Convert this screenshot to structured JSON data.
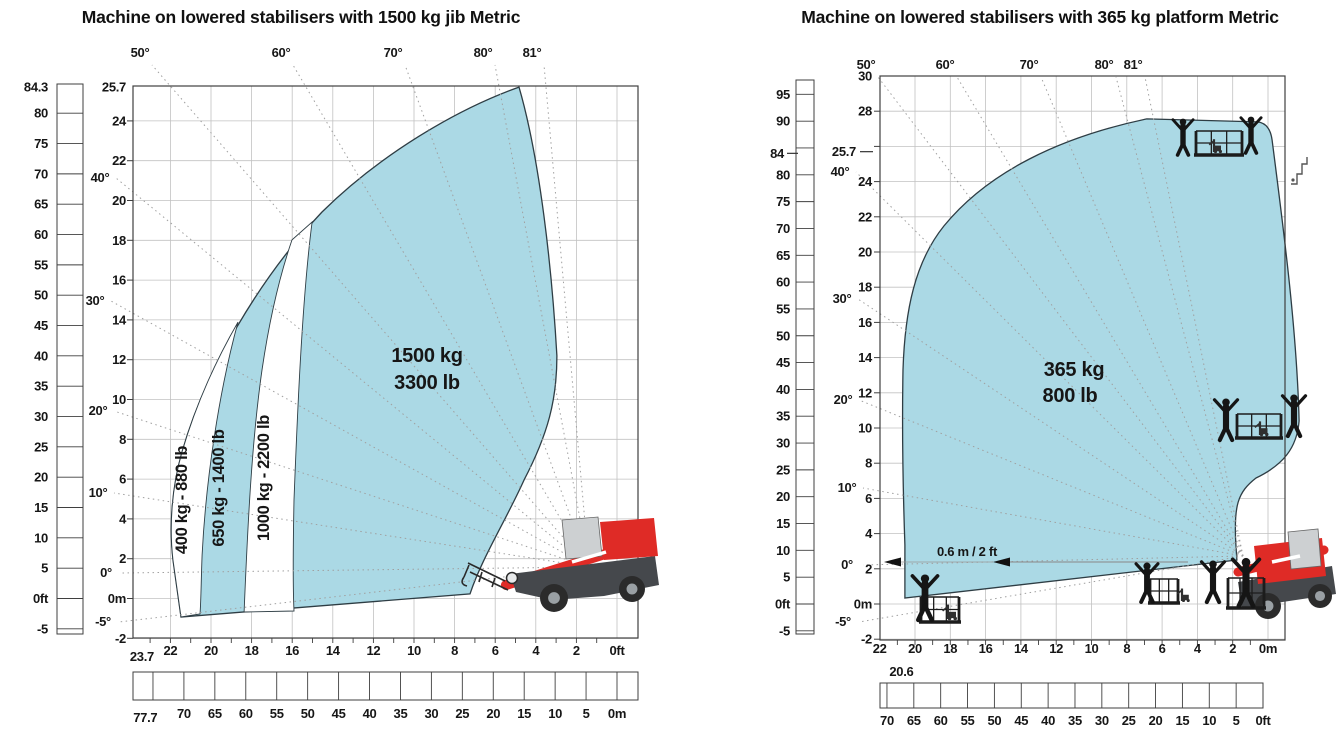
{
  "colors": {
    "envelope_fill": "#abd9e5",
    "envelope_stroke": "#2e3d44",
    "grid": "#c2c2c2",
    "axis_line": "#3f3f3f",
    "dotted_ray": "#a0a0a0",
    "text": "#161616",
    "machine_red": "#df2b26",
    "machine_grey": "#cdd0d2",
    "machine_dark": "#45484c",
    "silhouette": "#151515"
  },
  "charts": [
    {
      "title": "Machine on lowered stabilisers with 1500 kg jib Metric",
      "load": {
        "kg": "1500 kg",
        "lb": "3300 lb"
      },
      "zone_labels": [
        "400 kg - 880 lb",
        "650 kg - 1400 lb",
        "1000 kg - 2200 lb"
      ],
      "top_angles": [
        "50°",
        "60°",
        "70°",
        "80°",
        "81°"
      ],
      "side_angles": [
        "40°",
        "30°",
        "20°",
        "10°",
        "0°",
        "-5°"
      ],
      "meters_ticks": [
        {
          "t": "25.7",
          "v": 25.7
        },
        {
          "t": "24",
          "v": 24
        },
        {
          "t": "22",
          "v": 22
        },
        {
          "t": "20",
          "v": 20
        },
        {
          "t": "18",
          "v": 18
        },
        {
          "t": "16",
          "v": 16
        },
        {
          "t": "14",
          "v": 14
        },
        {
          "t": "12",
          "v": 12
        },
        {
          "t": "10",
          "v": 10
        },
        {
          "t": "8",
          "v": 8
        },
        {
          "t": "6",
          "v": 6
        },
        {
          "t": "4",
          "v": 4
        },
        {
          "t": "2",
          "v": 2
        },
        {
          "t": "0m",
          "v": 0
        },
        {
          "t": "-2",
          "v": -2
        }
      ],
      "feet_ticks": [
        {
          "t": "84.3",
          "v": 84.3
        },
        {
          "t": "80",
          "v": 80
        },
        {
          "t": "75",
          "v": 75
        },
        {
          "t": "70",
          "v": 70
        },
        {
          "t": "65",
          "v": 65
        },
        {
          "t": "60",
          "v": 60
        },
        {
          "t": "55",
          "v": 55
        },
        {
          "t": "50",
          "v": 50
        },
        {
          "t": "45",
          "v": 45
        },
        {
          "t": "40",
          "v": 40
        },
        {
          "t": "35",
          "v": 35
        },
        {
          "t": "30",
          "v": 30
        },
        {
          "t": "25",
          "v": 25
        },
        {
          "t": "20",
          "v": 20
        },
        {
          "t": "15",
          "v": 15
        },
        {
          "t": "10",
          "v": 10
        },
        {
          "t": "5",
          "v": 5
        },
        {
          "t": "0ft",
          "v": 0
        },
        {
          "t": "-5",
          "v": -5
        }
      ],
      "bottom_main_ticks": [
        {
          "t": "23.7",
          "v": 23.7,
          "low": true
        },
        {
          "t": "22",
          "v": 22
        },
        {
          "t": "20",
          "v": 20
        },
        {
          "t": "18",
          "v": 18
        },
        {
          "t": "16",
          "v": 16
        },
        {
          "t": "14",
          "v": 14
        },
        {
          "t": "12",
          "v": 12
        },
        {
          "t": "10",
          "v": 10
        },
        {
          "t": "8",
          "v": 8
        },
        {
          "t": "6",
          "v": 6
        },
        {
          "t": "4",
          "v": 4
        },
        {
          "t": "2",
          "v": 2
        },
        {
          "t": "0ft",
          "v": 0
        }
      ],
      "bottom_ruler_ticks": [
        {
          "t": "77.7",
          "v": 77.7,
          "low": true
        },
        {
          "t": "70",
          "v": 70
        },
        {
          "t": "65",
          "v": 65
        },
        {
          "t": "60",
          "v": 60
        },
        {
          "t": "55",
          "v": 55
        },
        {
          "t": "50",
          "v": 50
        },
        {
          "t": "45",
          "v": 45
        },
        {
          "t": "40",
          "v": 40
        },
        {
          "t": "35",
          "v": 35
        },
        {
          "t": "30",
          "v": 30
        },
        {
          "t": "25",
          "v": 25
        },
        {
          "t": "20",
          "v": 20
        },
        {
          "t": "15",
          "v": 15
        },
        {
          "t": "10",
          "v": 10
        },
        {
          "t": "5",
          "v": 5
        },
        {
          "t": "0m",
          "v": 0
        }
      ],
      "icons": [
        "telehandler-side-icon",
        "jib-hook-icon"
      ]
    },
    {
      "title": "Machine on lowered stabilisers with 365 kg platform Metric",
      "load": {
        "kg": "365 kg",
        "lb": "800 lb"
      },
      "annotation": "0.6 m / 2 ft",
      "top_angles": [
        "50°",
        "60°",
        "70°",
        "80°",
        "81°"
      ],
      "side_angles": [
        "40°",
        "30°",
        "20°",
        "10°",
        "0°",
        "-5°"
      ],
      "meters_ticks": [
        {
          "t": "30",
          "v": 30
        },
        {
          "t": "28",
          "v": 28
        },
        {
          "t": "25.7",
          "v": 25.7,
          "dash": true
        },
        {
          "t": "24",
          "v": 24
        },
        {
          "t": "22",
          "v": 22
        },
        {
          "t": "20",
          "v": 20
        },
        {
          "t": "18",
          "v": 18
        },
        {
          "t": "16",
          "v": 16
        },
        {
          "t": "14",
          "v": 14
        },
        {
          "t": "12",
          "v": 12
        },
        {
          "t": "10",
          "v": 10
        },
        {
          "t": "8",
          "v": 8
        },
        {
          "t": "6",
          "v": 6
        },
        {
          "t": "4",
          "v": 4
        },
        {
          "t": "2",
          "v": 2
        },
        {
          "t": "0m",
          "v": 0
        },
        {
          "t": "-2",
          "v": -2
        }
      ],
      "feet_ticks": [
        {
          "t": "95",
          "v": 95
        },
        {
          "t": "90",
          "v": 90
        },
        {
          "t": "84",
          "v": 84,
          "dash": true
        },
        {
          "t": "80",
          "v": 80
        },
        {
          "t": "75",
          "v": 75
        },
        {
          "t": "70",
          "v": 70
        },
        {
          "t": "65",
          "v": 65
        },
        {
          "t": "60",
          "v": 60
        },
        {
          "t": "55",
          "v": 55
        },
        {
          "t": "50",
          "v": 50
        },
        {
          "t": "45",
          "v": 45
        },
        {
          "t": "40",
          "v": 40
        },
        {
          "t": "35",
          "v": 35
        },
        {
          "t": "30",
          "v": 30
        },
        {
          "t": "25",
          "v": 25
        },
        {
          "t": "20",
          "v": 20
        },
        {
          "t": "15",
          "v": 15
        },
        {
          "t": "10",
          "v": 10
        },
        {
          "t": "5",
          "v": 5
        },
        {
          "t": "0ft",
          "v": 0
        },
        {
          "t": "-5",
          "v": -5
        }
      ],
      "bottom_main_ticks": [
        {
          "t": "22",
          "v": 22
        },
        {
          "t": "20.6",
          "v": 20.6,
          "low": true
        },
        {
          "t": "20",
          "v": 20
        },
        {
          "t": "18",
          "v": 18
        },
        {
          "t": "16",
          "v": 16
        },
        {
          "t": "14",
          "v": 14
        },
        {
          "t": "12",
          "v": 12
        },
        {
          "t": "10",
          "v": 10
        },
        {
          "t": "8",
          "v": 8
        },
        {
          "t": "6",
          "v": 6
        },
        {
          "t": "4",
          "v": 4
        },
        {
          "t": "2",
          "v": 2
        },
        {
          "t": "0m",
          "v": 0
        }
      ],
      "bottom_ruler_ticks": [
        {
          "t": "70",
          "v": 70
        },
        {
          "t": "65",
          "v": 65
        },
        {
          "t": "60",
          "v": 60
        },
        {
          "t": "55",
          "v": 55
        },
        {
          "t": "50",
          "v": 50
        },
        {
          "t": "45",
          "v": 45
        },
        {
          "t": "40",
          "v": 40
        },
        {
          "t": "35",
          "v": 35
        },
        {
          "t": "30",
          "v": 30
        },
        {
          "t": "25",
          "v": 25
        },
        {
          "t": "20",
          "v": 20
        },
        {
          "t": "15",
          "v": 15
        },
        {
          "t": "10",
          "v": 10
        },
        {
          "t": "5",
          "v": 5
        },
        {
          "t": "0ft",
          "v": 0
        }
      ],
      "icons": [
        "telehandler-side-icon",
        "person-on-platform-icon",
        "pallet-stacker-icon",
        "access-steps-icon"
      ]
    }
  ],
  "chart_data": [
    {
      "type": "area",
      "title": "Machine on lowered stabilisers with 1500 kg jib Metric",
      "x_axis": {
        "units": [
          "m",
          "ft"
        ],
        "max_reach_m": 23.7,
        "max_reach_ft": 77.7,
        "tick_step_m": 2,
        "tick_step_ft": 5
      },
      "y_axis": {
        "units": [
          "m",
          "ft"
        ],
        "range_m": [
          -2,
          25.7
        ],
        "range_ft": [
          -5,
          84.3
        ]
      },
      "boom_angles_deg": [
        -5,
        0,
        10,
        20,
        30,
        40,
        50,
        60,
        70,
        80,
        81
      ],
      "grid": true,
      "capacity_zones": [
        {
          "capacity_kg": 400,
          "capacity_lb": 880,
          "label": "400 kg - 880 lb"
        },
        {
          "capacity_kg": 650,
          "capacity_lb": 1400,
          "label": "650 kg - 1400 lb"
        },
        {
          "capacity_kg": 1000,
          "capacity_lb": 2200,
          "label": "1000 kg - 2200 lb"
        },
        {
          "capacity_kg": 1500,
          "capacity_lb": 3300,
          "label": "1500 kg / 3300 lb"
        }
      ],
      "envelope_outline_m": [
        [
          "M",
          4.83,
          25.7
        ],
        [
          "C",
          7.98,
          24.55,
          11.67,
          22.29,
          14.53,
          19.42
        ],
        [
          "C",
          17.68,
          16.01,
          20.3,
          11.38,
          21.43,
          7.36
        ],
        [
          "C",
          21.92,
          5.6,
          22.07,
          3.69,
          21.87,
          1.93
        ],
        [
          "L",
          21.48,
          -0.93
        ],
        [
          "L",
          7.24,
          0.23
        ],
        [
          "C",
          6.65,
          2.04,
          5.47,
          3.94,
          4.58,
          5.95
        ],
        [
          "C",
          3.4,
          8.27,
          2.96,
          9.97,
          2.96,
          12.19
        ],
        [
          "C",
          3.2,
          16.51,
          3.79,
          22.04,
          4.83,
          25.7
        ]
      ],
      "zone_overlays_m": {
        "zone_400": [
          [
            "M",
            21.48,
            -0.93
          ],
          [
            "L",
            21.87,
            1.93
          ],
          [
            "C",
            22.07,
            3.69,
            21.92,
            5.6,
            21.43,
            7.36
          ],
          [
            "C",
            20.74,
            9.78,
            19.8,
            11.89,
            18.67,
            13.89
          ],
          [
            "C",
            19.61,
            10.38,
            20.25,
            5.96,
            20.44,
            2.19
          ],
          [
            "C",
            20.49,
            0.93,
            20.49,
            -0.08,
            20.54,
            -0.78
          ]
        ],
        "zone_1000": [
          [
            "M",
            18.37,
            -0.68
          ],
          [
            "C",
            18.18,
            3.94,
            17.98,
            7.97,
            17.49,
            11.48
          ],
          [
            "C",
            17.09,
            14.25,
            16.6,
            16.26,
            16.01,
            18.02
          ],
          [
            "L",
            15.02,
            18.92
          ],
          [
            "C",
            15.52,
            15.0,
            15.76,
            8.97,
            15.91,
            4.95
          ],
          [
            "C",
            15.96,
            2.44,
            15.96,
            0.43,
            15.91,
            -0.63
          ]
        ]
      }
    },
    {
      "type": "area",
      "title": "Machine on lowered stabilisers with 365 kg platform Metric",
      "x_axis": {
        "units": [
          "m",
          "ft"
        ],
        "plot_edge_m": 22,
        "max_reach_m": 20.6,
        "tick_step_m": 2,
        "tick_step_ft": 5
      },
      "y_axis": {
        "units": [
          "m",
          "ft"
        ],
        "range_m": [
          -2,
          30
        ],
        "range_ft": [
          -5,
          95
        ],
        "reference_height_m": 25.7,
        "reference_height_ft": 84
      },
      "boom_angles_deg": [
        -5,
        0,
        10,
        20,
        30,
        40,
        50,
        60,
        70,
        80,
        81
      ],
      "grid": true,
      "platform_edge_offset": "0.6 m / 2 ft",
      "capacity_zones": [
        {
          "capacity_kg": 365,
          "capacity_lb": 800,
          "label": "365 kg / 800 lb"
        }
      ],
      "envelope_outline_m": [
        [
          "M",
          6.86,
          27.56
        ],
        [
          "C",
          11.78,
          26.53,
          15.86,
          24.55,
          18.36,
          21.48
        ],
        [
          "C",
          20.0,
          19.43,
          20.57,
          16.7,
          20.68,
          13.3
        ],
        [
          "C",
          20.74,
          9.89,
          20.68,
          6.48,
          20.57,
          3.35
        ],
        [
          "L",
          20.57,
          0.34
        ],
        [
          "L",
          1.76,
          2.5
        ],
        [
          "L",
          1.81,
          3.18
        ],
        [
          "C",
          1.98,
          5.63,
          1.7,
          6.36,
          0.68,
          7.16
        ],
        [
          "C",
          -0.85,
          7.9,
          -1.64,
          8.86,
          -1.76,
          10.4
        ],
        [
          "C",
          -1.64,
          15.57,
          -0.85,
          21.53,
          -0.23,
          26.36
        ],
        [
          "Q",
          -0.11,
          27.33,
          0.62,
          27.39
        ]
      ]
    }
  ]
}
